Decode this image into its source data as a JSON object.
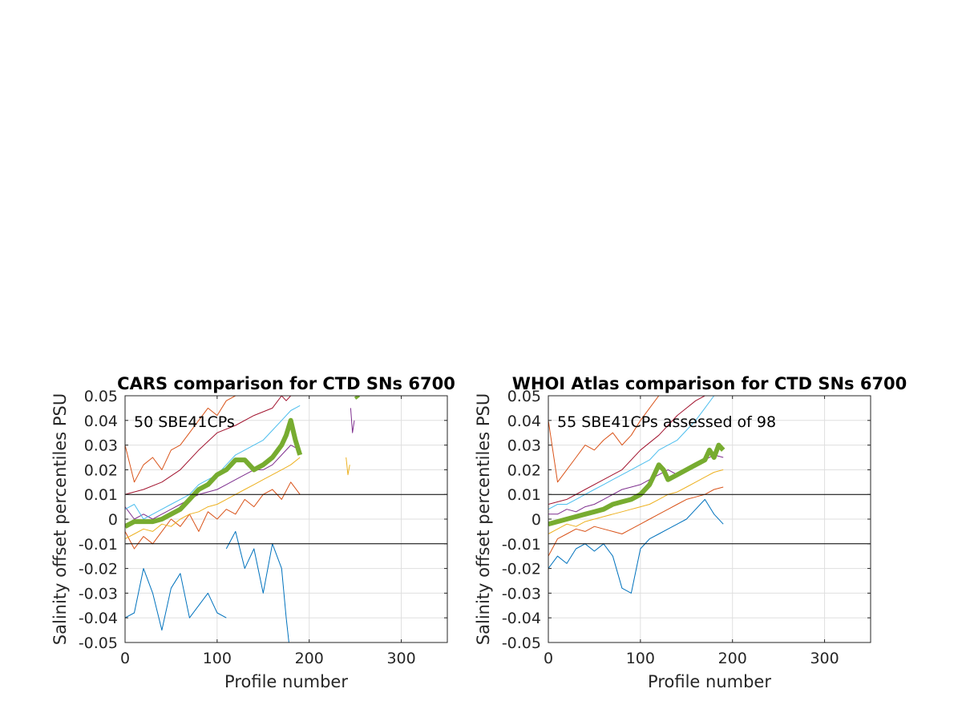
{
  "chart_data": [
    {
      "type": "line",
      "title": "CARS comparison for CTD SNs 6700",
      "xlabel": "Profile number",
      "ylabel": "Salinity offset percentiles PSU",
      "annotation": "50 SBE41CPs",
      "xlim": [
        0,
        350
      ],
      "ylim": [
        -0.05,
        0.05
      ],
      "xticks": [
        0,
        100,
        200,
        300
      ],
      "xtick_labels": [
        "0",
        "100",
        "200",
        "300"
      ],
      "yticks": [
        -0.05,
        -0.04,
        -0.03,
        -0.02,
        -0.01,
        0,
        0.01,
        0.02,
        0.03,
        0.04,
        0.05
      ],
      "ytick_labels": [
        "-0.05",
        "-0.04",
        "-0.03",
        "-0.02",
        "-0.01",
        "0",
        "0.01",
        "0.02",
        "0.03",
        "0.04",
        "0.05"
      ],
      "grid": true,
      "reference_lines": [
        0.01,
        -0.01
      ],
      "series": [
        {
          "color": "#0072BD",
          "width": 1,
          "segments": [
            {
              "x": [
                0,
                10,
                20,
                30,
                40,
                50,
                60,
                70,
                80,
                90,
                100,
                110
              ],
              "y": [
                -0.04,
                -0.038,
                -0.02,
                -0.03,
                -0.045,
                -0.028,
                -0.022,
                -0.04,
                -0.035,
                -0.03,
                -0.038,
                -0.04
              ]
            },
            {
              "x": [
                110,
                120,
                130,
                140,
                150,
                160,
                170,
                175,
                178
              ],
              "y": [
                -0.012,
                -0.005,
                -0.02,
                -0.012,
                -0.03,
                -0.01,
                -0.02,
                -0.04,
                -0.05
              ]
            }
          ]
        },
        {
          "color": "#D95319",
          "width": 1,
          "segments": [
            {
              "x": [
                0,
                10,
                20,
                30,
                40,
                50,
                60,
                70,
                80,
                90,
                100,
                110,
                120,
                130,
                140,
                150,
                160,
                170,
                180,
                190
              ],
              "y": [
                -0.005,
                -0.012,
                -0.007,
                -0.01,
                -0.005,
                0.0,
                -0.003,
                0.002,
                -0.005,
                0.003,
                0.0,
                0.004,
                0.002,
                0.008,
                0.005,
                0.01,
                0.012,
                0.008,
                0.015,
                0.01
              ]
            },
            {
              "x": [
                0,
                10,
                20,
                30,
                40,
                50,
                60,
                70,
                80,
                90,
                100,
                110,
                120,
                130
              ],
              "y": [
                0.03,
                0.015,
                0.022,
                0.025,
                0.02,
                0.028,
                0.03,
                0.035,
                0.04,
                0.045,
                0.042,
                0.048,
                0.05,
                0.05
              ]
            }
          ]
        },
        {
          "color": "#EDB120",
          "width": 1,
          "segments": [
            {
              "x": [
                0,
                10,
                20,
                30,
                40,
                50,
                60,
                70,
                80,
                90,
                100,
                110,
                120,
                130,
                140,
                150,
                160,
                170,
                180,
                190
              ],
              "y": [
                -0.008,
                -0.006,
                -0.004,
                -0.005,
                -0.002,
                -0.003,
                0.0,
                0.002,
                0.003,
                0.005,
                0.006,
                0.008,
                0.01,
                0.012,
                0.014,
                0.016,
                0.018,
                0.02,
                0.022,
                0.025
              ]
            },
            {
              "x": [
                240,
                242,
                244
              ],
              "y": [
                0.025,
                0.018,
                0.022
              ]
            }
          ]
        },
        {
          "color": "#7E2F8E",
          "width": 1,
          "segments": [
            {
              "x": [
                0,
                10,
                20,
                30,
                40,
                50,
                60,
                70,
                80,
                90,
                100,
                110,
                120,
                130,
                140,
                150,
                160,
                170,
                180,
                190
              ],
              "y": [
                0.005,
                0.0,
                0.002,
                0.0,
                0.002,
                0.004,
                0.006,
                0.008,
                0.01,
                0.011,
                0.012,
                0.014,
                0.016,
                0.018,
                0.02,
                0.02,
                0.022,
                0.026,
                0.03,
                0.028
              ]
            },
            {
              "x": [
                245,
                247,
                249
              ],
              "y": [
                0.045,
                0.035,
                0.04
              ]
            }
          ]
        },
        {
          "color": "#4DBEEE",
          "width": 1,
          "segments": [
            {
              "x": [
                0,
                10,
                20,
                30,
                40,
                50,
                60,
                70,
                80,
                90,
                100,
                110,
                120,
                130,
                140,
                150,
                160,
                170,
                180,
                190
              ],
              "y": [
                0.004,
                0.006,
                0.0,
                0.002,
                0.004,
                0.006,
                0.008,
                0.01,
                0.014,
                0.016,
                0.018,
                0.022,
                0.026,
                0.028,
                0.03,
                0.032,
                0.036,
                0.04,
                0.044,
                0.046
              ]
            }
          ]
        },
        {
          "color": "#A2142F",
          "width": 1,
          "segments": [
            {
              "x": [
                0,
                20,
                40,
                60,
                80,
                100,
                120,
                140,
                160,
                170,
                175,
                180,
                190
              ],
              "y": [
                0.01,
                0.012,
                0.015,
                0.02,
                0.028,
                0.035,
                0.038,
                0.042,
                0.045,
                0.05,
                0.048,
                0.05,
                0.05
              ]
            }
          ]
        },
        {
          "color": "#77AC30",
          "width": 6,
          "segments": [
            {
              "x": [
                0,
                10,
                20,
                30,
                40,
                50,
                60,
                70,
                80,
                90,
                100,
                110,
                120,
                130,
                140,
                150,
                160,
                170,
                175,
                180,
                185,
                190
              ],
              "y": [
                -0.003,
                -0.001,
                -0.001,
                -0.001,
                0.0,
                0.002,
                0.004,
                0.008,
                0.012,
                0.014,
                0.018,
                0.02,
                0.024,
                0.024,
                0.02,
                0.022,
                0.025,
                0.03,
                0.034,
                0.04,
                0.032,
                0.026
              ]
            },
            {
              "x": [
                251,
                253
              ],
              "y": [
                0.05,
                0.049
              ]
            }
          ]
        }
      ]
    },
    {
      "type": "line",
      "title": "WHOI Atlas comparison for CTD SNs 6700",
      "xlabel": "Profile number",
      "ylabel": "Salinity offset percentiles PSU",
      "annotation": "55 SBE41CPs assessed of 98",
      "xlim": [
        0,
        350
      ],
      "ylim": [
        -0.05,
        0.05
      ],
      "xticks": [
        0,
        100,
        200,
        300
      ],
      "xtick_labels": [
        "0",
        "100",
        "200",
        "300"
      ],
      "yticks": [
        -0.05,
        -0.04,
        -0.03,
        -0.02,
        -0.01,
        0,
        0.01,
        0.02,
        0.03,
        0.04,
        0.05
      ],
      "ytick_labels": [
        "-0.05",
        "-0.04",
        "-0.03",
        "-0.02",
        "-0.01",
        "0",
        "0.01",
        "0.02",
        "0.03",
        "0.04",
        "0.05"
      ],
      "grid": true,
      "reference_lines": [
        0.01,
        -0.01
      ],
      "series": [
        {
          "color": "#0072BD",
          "width": 1,
          "segments": [
            {
              "x": [
                0,
                10,
                20,
                30,
                40,
                50,
                60,
                70,
                80,
                90,
                100,
                110,
                120,
                130,
                140,
                150,
                160,
                170,
                180,
                190
              ],
              "y": [
                -0.02,
                -0.015,
                -0.018,
                -0.012,
                -0.01,
                -0.013,
                -0.01,
                -0.015,
                -0.028,
                -0.03,
                -0.012,
                -0.008,
                -0.006,
                -0.004,
                -0.002,
                0.0,
                0.004,
                0.008,
                0.002,
                -0.002
              ]
            }
          ]
        },
        {
          "color": "#D95319",
          "width": 1,
          "segments": [
            {
              "x": [
                0,
                10,
                20,
                30,
                40,
                50,
                60,
                70,
                80,
                90,
                100,
                110,
                120,
                130,
                140,
                150,
                160,
                170,
                180,
                190
              ],
              "y": [
                -0.015,
                -0.008,
                -0.006,
                -0.004,
                -0.005,
                -0.003,
                -0.004,
                -0.005,
                -0.006,
                -0.004,
                -0.002,
                0.0,
                0.002,
                0.004,
                0.006,
                0.008,
                0.009,
                0.01,
                0.012,
                0.013
              ]
            },
            {
              "x": [
                0,
                10,
                20,
                30,
                40,
                50,
                60,
                70,
                80,
                90,
                100,
                110,
                120,
                130
              ],
              "y": [
                0.04,
                0.015,
                0.02,
                0.025,
                0.03,
                0.028,
                0.032,
                0.035,
                0.03,
                0.034,
                0.04,
                0.045,
                0.05,
                0.05
              ]
            }
          ]
        },
        {
          "color": "#EDB120",
          "width": 1,
          "segments": [
            {
              "x": [
                0,
                10,
                20,
                30,
                40,
                50,
                60,
                70,
                80,
                90,
                100,
                110,
                120,
                130,
                140,
                150,
                160,
                170,
                180,
                190
              ],
              "y": [
                -0.006,
                -0.004,
                -0.002,
                -0.003,
                -0.001,
                0.0,
                0.001,
                0.002,
                0.003,
                0.004,
                0.005,
                0.006,
                0.008,
                0.01,
                0.011,
                0.013,
                0.015,
                0.017,
                0.019,
                0.02
              ]
            }
          ]
        },
        {
          "color": "#7E2F8E",
          "width": 1,
          "segments": [
            {
              "x": [
                0,
                10,
                20,
                30,
                40,
                50,
                60,
                70,
                80,
                90,
                100,
                110,
                120,
                130,
                140,
                150,
                160,
                170,
                180,
                190
              ],
              "y": [
                0.002,
                0.002,
                0.004,
                0.003,
                0.005,
                0.006,
                0.008,
                0.01,
                0.012,
                0.013,
                0.014,
                0.016,
                0.018,
                0.02,
                0.018,
                0.02,
                0.022,
                0.024,
                0.026,
                0.025
              ]
            }
          ]
        },
        {
          "color": "#4DBEEE",
          "width": 1,
          "segments": [
            {
              "x": [
                0,
                10,
                20,
                30,
                40,
                50,
                60,
                70,
                80,
                90,
                100,
                110,
                120,
                130,
                140,
                150,
                160,
                170,
                180,
                190
              ],
              "y": [
                0.004,
                0.006,
                0.006,
                0.008,
                0.01,
                0.012,
                0.014,
                0.016,
                0.018,
                0.02,
                0.022,
                0.024,
                0.028,
                0.03,
                0.032,
                0.036,
                0.04,
                0.045,
                0.05,
                0.05
              ]
            }
          ]
        },
        {
          "color": "#A2142F",
          "width": 1,
          "segments": [
            {
              "x": [
                0,
                20,
                40,
                60,
                80,
                100,
                120,
                140,
                160,
                170,
                180,
                190
              ],
              "y": [
                0.006,
                0.008,
                0.012,
                0.016,
                0.02,
                0.028,
                0.034,
                0.042,
                0.048,
                0.05,
                0.05,
                0.05
              ]
            }
          ]
        },
        {
          "color": "#77AC30",
          "width": 6,
          "segments": [
            {
              "x": [
                0,
                10,
                20,
                30,
                40,
                50,
                60,
                70,
                80,
                90,
                100,
                110,
                115,
                120,
                125,
                130,
                140,
                150,
                160,
                170,
                175,
                180,
                185,
                190
              ],
              "y": [
                -0.002,
                -0.001,
                0.0,
                0.001,
                0.002,
                0.003,
                0.004,
                0.006,
                0.007,
                0.008,
                0.01,
                0.014,
                0.018,
                0.022,
                0.02,
                0.016,
                0.018,
                0.02,
                0.022,
                0.024,
                0.028,
                0.025,
                0.03,
                0.028
              ]
            }
          ]
        }
      ]
    }
  ]
}
